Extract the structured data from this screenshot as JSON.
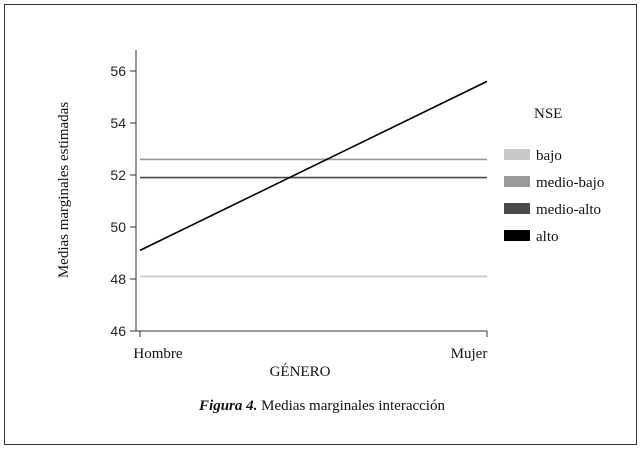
{
  "chart_data": {
    "type": "line",
    "xlabel": "GÉNERO",
    "ylabel": "Medias marginales estimadas",
    "categories": [
      "Hombre",
      "Mujer"
    ],
    "ylim": [
      46,
      56
    ],
    "yticks": [
      46,
      48,
      50,
      52,
      54,
      56
    ],
    "legend_title": "NSE",
    "legend_position": "right",
    "series": [
      {
        "name": "bajo",
        "values": [
          48.1,
          48.1
        ],
        "color": "#c8c8c8"
      },
      {
        "name": "medio-bajo",
        "values": [
          52.6,
          52.6
        ],
        "color": "#999999"
      },
      {
        "name": "medio-alto",
        "values": [
          51.9,
          51.9
        ],
        "color": "#4a4a4a"
      },
      {
        "name": "alto",
        "values": [
          49.1,
          55.6
        ],
        "color": "#000000"
      }
    ]
  },
  "caption": {
    "label": "Figura 4.",
    "text": "Medias marginales interacción"
  }
}
